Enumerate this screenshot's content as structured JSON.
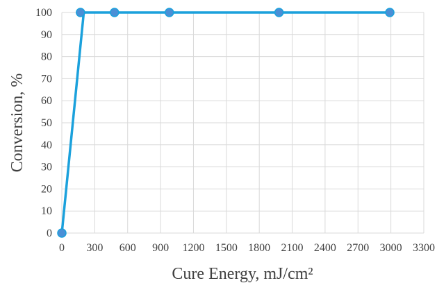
{
  "chart_data": {
    "type": "line",
    "title": "",
    "xlabel": "Cure Energy, mJ/cm²",
    "ylabel": "Conversion, %",
    "xlim": [
      0,
      3300
    ],
    "ylim": [
      0,
      100
    ],
    "x_ticks": [
      0,
      300,
      600,
      900,
      1200,
      1500,
      1800,
      2100,
      2400,
      2700,
      3000,
      3300
    ],
    "y_ticks": [
      0,
      10,
      20,
      30,
      40,
      50,
      60,
      70,
      80,
      90,
      100
    ],
    "grid": true,
    "legend": "none",
    "series": [
      {
        "line": {
          "x": [
            0,
            200,
            3000
          ],
          "y": [
            0,
            100,
            100
          ]
        },
        "points": {
          "x": [
            0,
            170,
            480,
            980,
            1980,
            2990
          ],
          "y": [
            0,
            100,
            100,
            100,
            100,
            100
          ]
        },
        "line_color": "#1ba1dc",
        "marker_color": "#4a8fd6"
      }
    ]
  }
}
